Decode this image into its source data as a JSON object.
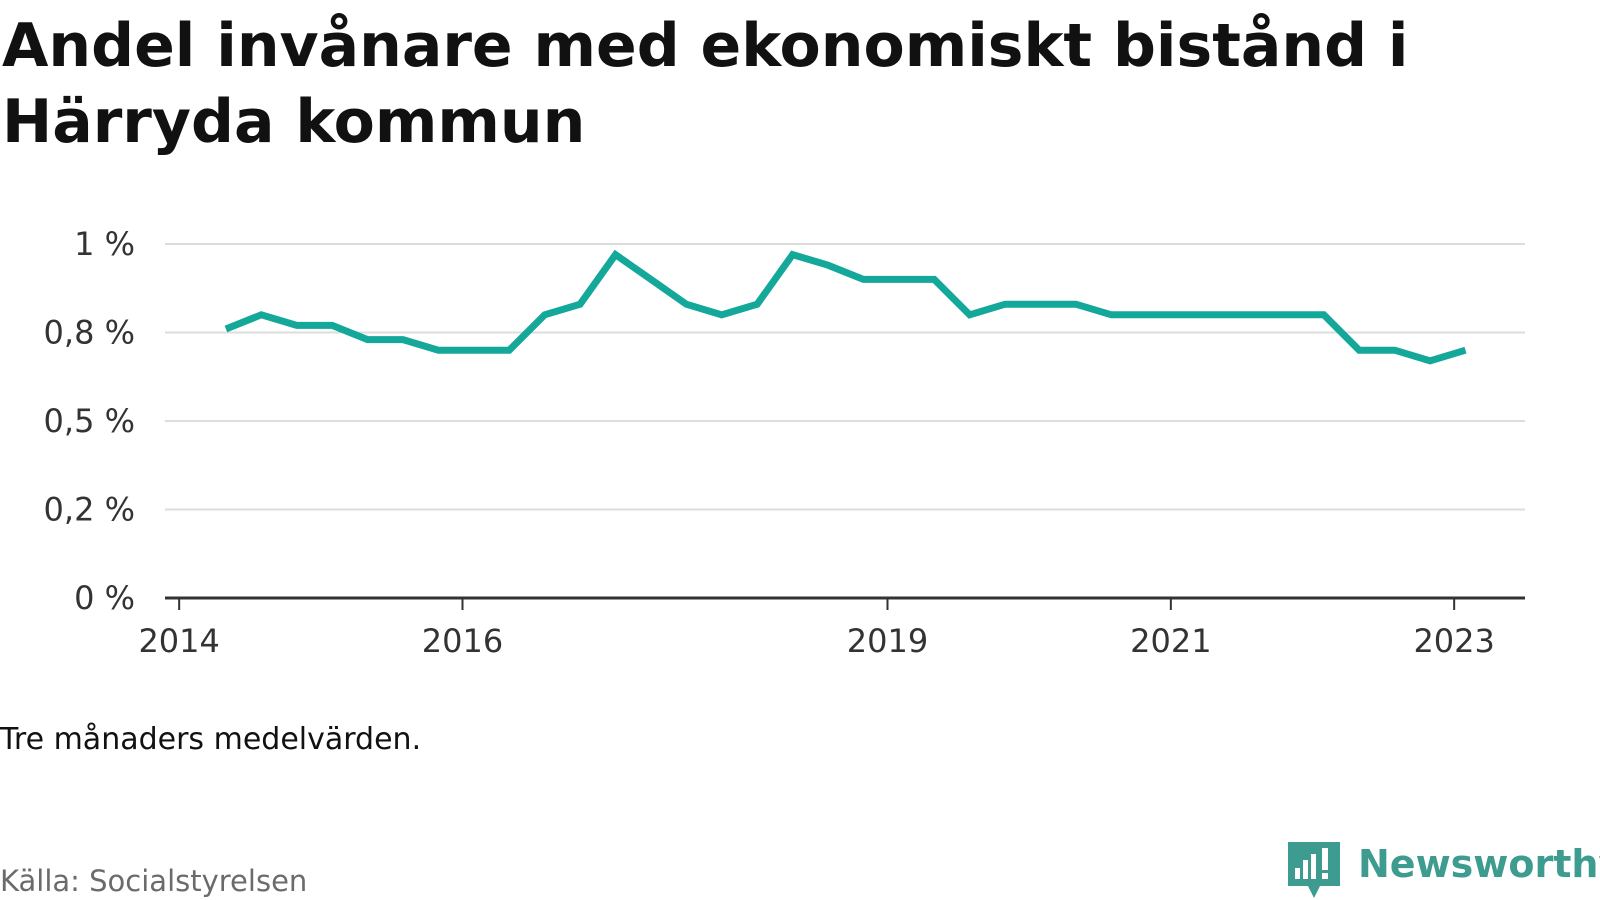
{
  "chart_data": {
    "type": "line",
    "title": "Andel invånare med ekonomiskt bistånd i Härryda kommun",
    "subtitle": "",
    "xlabel": "",
    "ylabel": "",
    "note": "Tre månaders medelvärden.",
    "source": "Källa: Socialstyrelsen",
    "x_tick_labels": [
      "2014",
      "2016",
      "2019",
      "2021",
      "2023"
    ],
    "x_ticks": [
      2014.0,
      2016.0,
      2019.0,
      2021.0,
      2023.0
    ],
    "y_tick_labels": [
      "0 %",
      "0,2 %",
      "0,5 %",
      "0,8 %",
      "1 %"
    ],
    "y_ticks": [
      0,
      0.25,
      0.5,
      0.75,
      1.0
    ],
    "xlim": [
      2013.9,
      2023.5
    ],
    "ylim": [
      0,
      1.0
    ],
    "grid": true,
    "series": [
      {
        "color": "#14a89a",
        "x": [
          2014.33,
          2014.58,
          2014.83,
          2015.08,
          2015.33,
          2015.58,
          2015.83,
          2016.08,
          2016.33,
          2016.58,
          2016.83,
          2017.08,
          2017.33,
          2017.58,
          2017.83,
          2018.08,
          2018.33,
          2018.58,
          2018.83,
          2019.08,
          2019.33,
          2019.58,
          2019.83,
          2020.08,
          2020.33,
          2020.58,
          2020.83,
          2021.08,
          2021.33,
          2021.58,
          2021.83,
          2022.08,
          2022.33,
          2022.58,
          2022.83,
          2023.08
        ],
        "y": [
          0.76,
          0.8,
          0.77,
          0.77,
          0.73,
          0.73,
          0.7,
          0.7,
          0.7,
          0.8,
          0.83,
          0.97,
          0.9,
          0.83,
          0.8,
          0.83,
          0.97,
          0.94,
          0.9,
          0.9,
          0.9,
          0.8,
          0.83,
          0.83,
          0.83,
          0.8,
          0.8,
          0.8,
          0.8,
          0.8,
          0.8,
          0.8,
          0.7,
          0.7,
          0.67,
          0.7
        ]
      }
    ]
  },
  "brand": {
    "name": "Newsworthy",
    "color": "#3d9b8f",
    "icon": "newsworthy-logo-icon"
  }
}
